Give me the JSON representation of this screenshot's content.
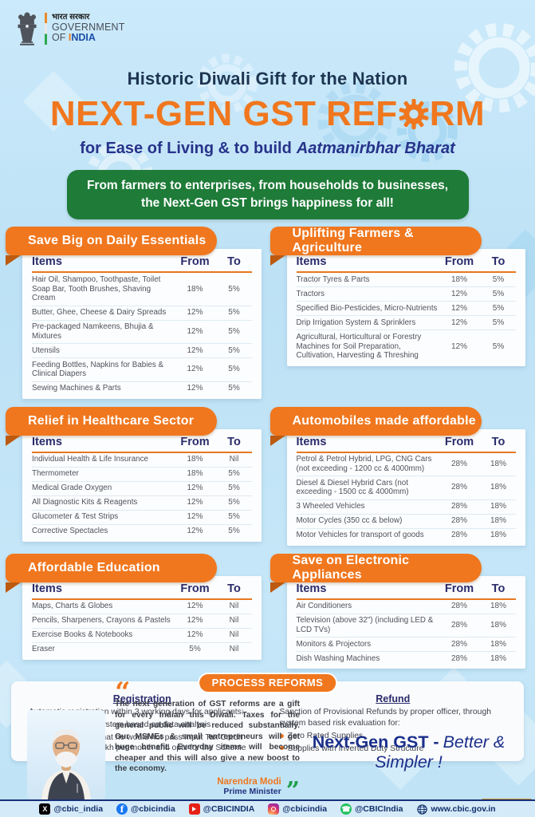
{
  "header": {
    "emblem": "ashoka-emblem",
    "hindi_title": "भारत सरकार",
    "government": "GOVERNMENT",
    "of": "OF ",
    "india_first": "I",
    "india_rest": "NDIA"
  },
  "hero": {
    "kicker": "Historic Diwali Gift for the Nation",
    "title_pre": "NEXT-GEN GST REF",
    "title_post": "RM",
    "subtitle_pre": "for Ease of Living & to build",
    "subtitle_italic": "Aatmanirbhar Bharat"
  },
  "banner": {
    "line1": "From farmers to enterprises, from households to businesses,",
    "line2": "the Next-Gen GST brings happiness for all!"
  },
  "table_columns": {
    "items": "Items",
    "from": "From",
    "to": "To"
  },
  "cards": [
    {
      "title": "Save Big on Daily Essentials",
      "rows": [
        {
          "item": "Hair Oil, Shampoo, Toothpaste, Toilet Soap Bar, Tooth Brushes, Shaving Cream",
          "from": "18%",
          "to": "5%"
        },
        {
          "item": "Butter, Ghee, Cheese & Dairy Spreads",
          "from": "12%",
          "to": "5%"
        },
        {
          "item": "Pre-packaged Namkeens, Bhujia & Mixtures",
          "from": "12%",
          "to": "5%"
        },
        {
          "item": "Utensils",
          "from": "12%",
          "to": "5%"
        },
        {
          "item": "Feeding Bottles, Napkins for Babies & Clinical Diapers",
          "from": "12%",
          "to": "5%"
        },
        {
          "item": "Sewing Machines & Parts",
          "from": "12%",
          "to": "5%"
        }
      ]
    },
    {
      "title": "Uplifting Farmers & Agriculture",
      "rows": [
        {
          "item": "Tractor Tyres & Parts",
          "from": "18%",
          "to": "5%"
        },
        {
          "item": "Tractors",
          "from": "12%",
          "to": "5%"
        },
        {
          "item": "Specified Bio-Pesticides, Micro-Nutrients",
          "from": "12%",
          "to": "5%"
        },
        {
          "item": "Drip Irrigation System & Sprinklers",
          "from": "12%",
          "to": "5%"
        },
        {
          "item": "Agricultural, Horticultural or Forestry Machines for Soil Preparation, Cultivation, Harvesting & Threshing",
          "from": "12%",
          "to": "5%"
        }
      ]
    },
    {
      "title": "Relief in Healthcare Sector",
      "rows": [
        {
          "item": "Individual Health & Life Insurance",
          "from": "18%",
          "to": "Nil"
        },
        {
          "item": "Thermometer",
          "from": "18%",
          "to": "5%"
        },
        {
          "item": "Medical Grade Oxygen",
          "from": "12%",
          "to": "5%"
        },
        {
          "item": "All Diagnostic Kits & Reagents",
          "from": "12%",
          "to": "5%"
        },
        {
          "item": "Glucometer & Test Strips",
          "from": "12%",
          "to": "5%"
        },
        {
          "item": "Corrective Spectacles",
          "from": "12%",
          "to": "5%"
        }
      ]
    },
    {
      "title": "Automobiles made affordable",
      "rows": [
        {
          "item": "Petrol & Petrol Hybrid, LPG, CNG Cars (not exceeding - 1200 cc & 4000mm)",
          "from": "28%",
          "to": "18%"
        },
        {
          "item": "Diesel & Diesel Hybrid Cars (not exceeding - 1500 cc & 4000mm)",
          "from": "28%",
          "to": "18%"
        },
        {
          "item": "3 Wheeled Vehicles",
          "from": "28%",
          "to": "18%"
        },
        {
          "item": "Motor Cycles (350 cc & below)",
          "from": "28%",
          "to": "18%"
        },
        {
          "item": "Motor Vehicles for transport of goods",
          "from": "28%",
          "to": "18%"
        }
      ]
    },
    {
      "title": "Affordable Education",
      "rows": [
        {
          "item": "Maps, Charts & Globes",
          "from": "12%",
          "to": "Nil"
        },
        {
          "item": "Pencils, Sharpeners, Crayons & Pastels",
          "from": "12%",
          "to": "Nil"
        },
        {
          "item": "Exercise Books & Notebooks",
          "from": "12%",
          "to": "Nil"
        },
        {
          "item": "Eraser",
          "from": "5%",
          "to": "Nil"
        }
      ]
    },
    {
      "title": "Save on Electronic Appliances",
      "rows": [
        {
          "item": "Air Conditioners",
          "from": "28%",
          "to": "18%"
        },
        {
          "item": "Television (above 32\") (including LED & LCD TVs)",
          "from": "28%",
          "to": "18%"
        },
        {
          "item": "Monitors & Projectors",
          "from": "28%",
          "to": "18%"
        },
        {
          "item": "Dish Washing Machines",
          "from": "28%",
          "to": "18%"
        }
      ]
    }
  ],
  "process": {
    "badge": "PROCESS REFORMS",
    "registration": {
      "title": "Registration",
      "intro": "Automatic registration within 3 working days for applicants:",
      "bullets": [
        "Identified by the system based on data analysis",
        "Who determines that he would not pass Input Tax Credit exceeding ₹2.5 Lakh per month and opts for the Scheme"
      ]
    },
    "refund": {
      "title": "Refund",
      "intro": "Sanction of Provisional Refunds by proper officer, through system based risk evaluation for:",
      "bullets": [
        "Zero Rated Supplies",
        "Supplies with Inverted Duty Structure"
      ]
    }
  },
  "quote": {
    "text": "The next generation of GST reforms are a gift for every Indian this Diwali. Taxes for the general public will be reduced substantially. Our MSMEs & small entrepreneurs will get huge benefit. Everyday items will become cheaper and this will also give a new boost to the economy.",
    "name": "Narendra Modi",
    "role": "Prime Minister"
  },
  "tagline": {
    "bold": "Next-Gen GST -",
    "italic": "Better & Simpler !"
  },
  "footer": {
    "items": [
      {
        "network": "x",
        "handle": "@cbic_india"
      },
      {
        "network": "facebook",
        "handle": "@cbicindia"
      },
      {
        "network": "youtube",
        "handle": "@CBICINDIA"
      },
      {
        "network": "instagram",
        "handle": "@cbicindia"
      },
      {
        "network": "whatsapp",
        "handle": "@CBICIndia"
      },
      {
        "network": "web",
        "handle": "www.cbic.gov.in"
      }
    ]
  },
  "colors": {
    "accent_orange": "#F0771E",
    "deep_orange": "#BC5A10",
    "navy": "#2B2C6B",
    "banner_green": "#1E7B38",
    "background_blue": "#C2E4F6",
    "footer_blue": "#D5EAF8",
    "footer_text": "#12306B"
  }
}
